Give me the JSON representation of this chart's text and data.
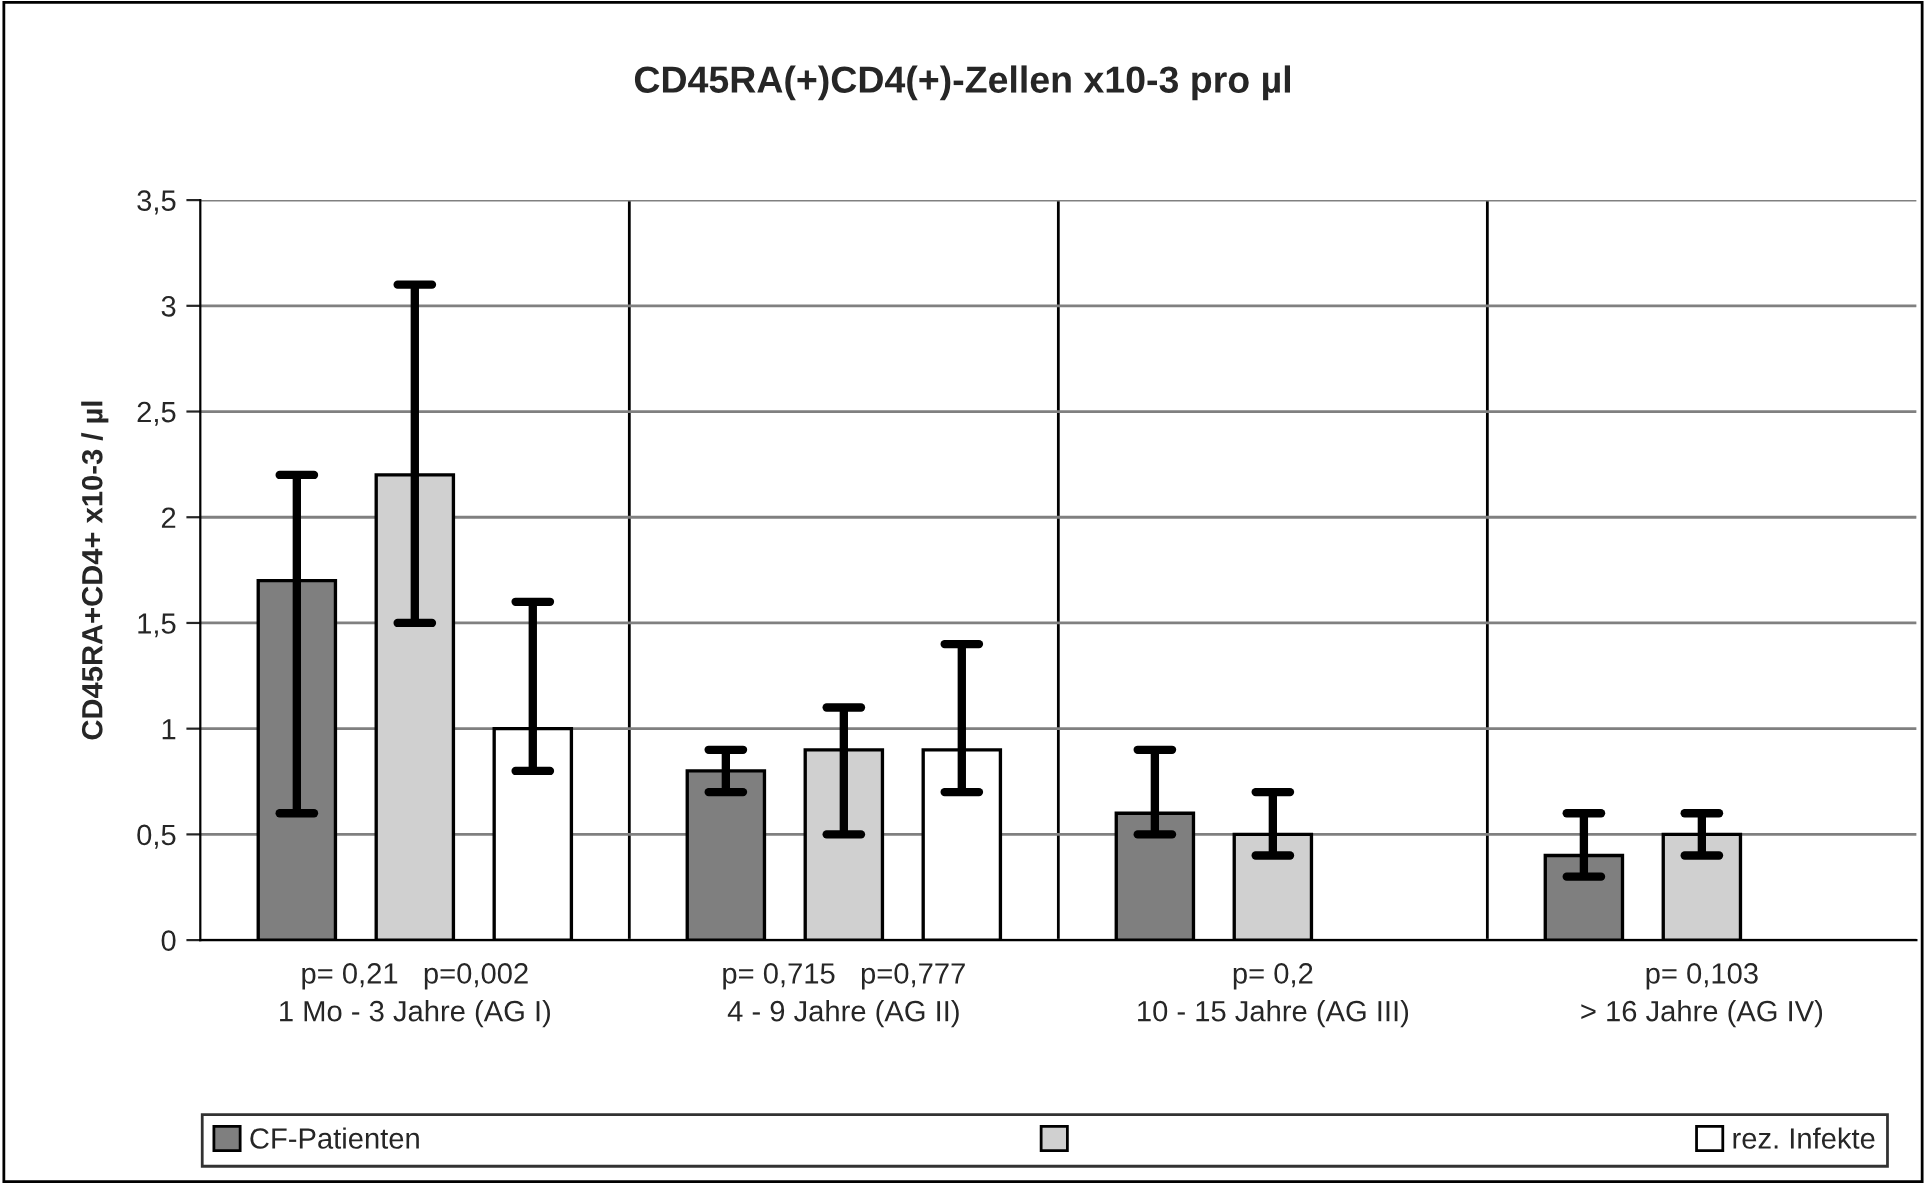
{
  "chart_data": {
    "type": "bar",
    "title": "CD45RA(+)CD4(+)-Zellen x10-3 pro µl",
    "ylabel": "CD45RA+CD4+ x10-3 / µl",
    "categories": [
      "p= 0,21   p=0,002\n1 Mo - 3 Jahre (AG I)",
      "p= 0,715   p=0,777\n4 - 9 Jahre (AG II)",
      "p= 0,2\n10 - 15 Jahre (AG III)",
      "p= 0,103\n> 16 Jahre (AG IV)"
    ],
    "series": [
      {
        "name": "CF-Patienten",
        "color": "#7f7f7f",
        "values": [
          1.7,
          0.8,
          0.6,
          0.4
        ],
        "errors": [
          [
            0.6,
            2.2
          ],
          [
            0.7,
            0.9
          ],
          [
            0.5,
            0.9
          ],
          [
            0.3,
            0.6
          ]
        ]
      },
      {
        "color": "#d0d0d0",
        "values": [
          2.2,
          0.9,
          0.5,
          0.5
        ],
        "errors": [
          [
            1.5,
            3.1
          ],
          [
            0.5,
            1.1
          ],
          [
            0.4,
            0.7
          ],
          [
            0.4,
            0.6
          ]
        ]
      },
      {
        "name": "rez. Infekte",
        "color": "#ffffff",
        "values": [
          1.0,
          0.9,
          null,
          null
        ],
        "errors": [
          [
            0.8,
            1.6
          ],
          [
            0.7,
            1.4
          ],
          null,
          null
        ]
      }
    ],
    "ylim": [
      0,
      3.5
    ],
    "yticks": [
      0,
      {
        "value": 0.5,
        "label": "0,5"
      },
      1,
      {
        "value": 1.5,
        "label": "1,5"
      },
      2,
      {
        "value": 2.5,
        "label": "2,5"
      },
      3,
      {
        "value": 3.5,
        "label": "3,5"
      }
    ],
    "grid": true,
    "legend": "bottom"
  }
}
